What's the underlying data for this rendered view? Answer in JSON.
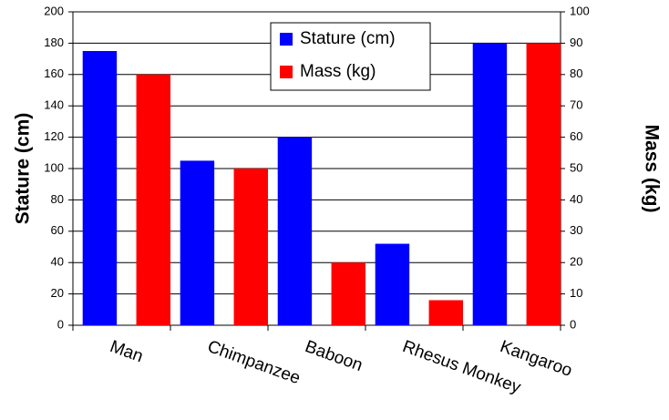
{
  "chart_data": {
    "type": "bar",
    "categories": [
      "Man",
      "Chimpanzee",
      "Baboon",
      "Rhesus Monkey",
      "Kangaroo"
    ],
    "series": [
      {
        "name": "Stature (cm)",
        "color": "#0000ff",
        "values": [
          175,
          105,
          120,
          52,
          180
        ]
      },
      {
        "name": "Mass (kg)",
        "color": "#ff0000",
        "axis": "y2",
        "values": [
          80,
          50,
          20,
          8,
          90
        ]
      }
    ],
    "ylabel": "Stature (cm)",
    "y2label": "Mass (kg)",
    "ylim": [
      0,
      200
    ],
    "yticks": [
      0,
      20,
      40,
      60,
      80,
      100,
      120,
      140,
      160,
      180,
      200
    ],
    "y2lim": [
      0,
      100
    ],
    "y2ticks": [
      0,
      10,
      20,
      30,
      40,
      50,
      60,
      70,
      80,
      90,
      100
    ],
    "grid": true,
    "legend": "top"
  }
}
